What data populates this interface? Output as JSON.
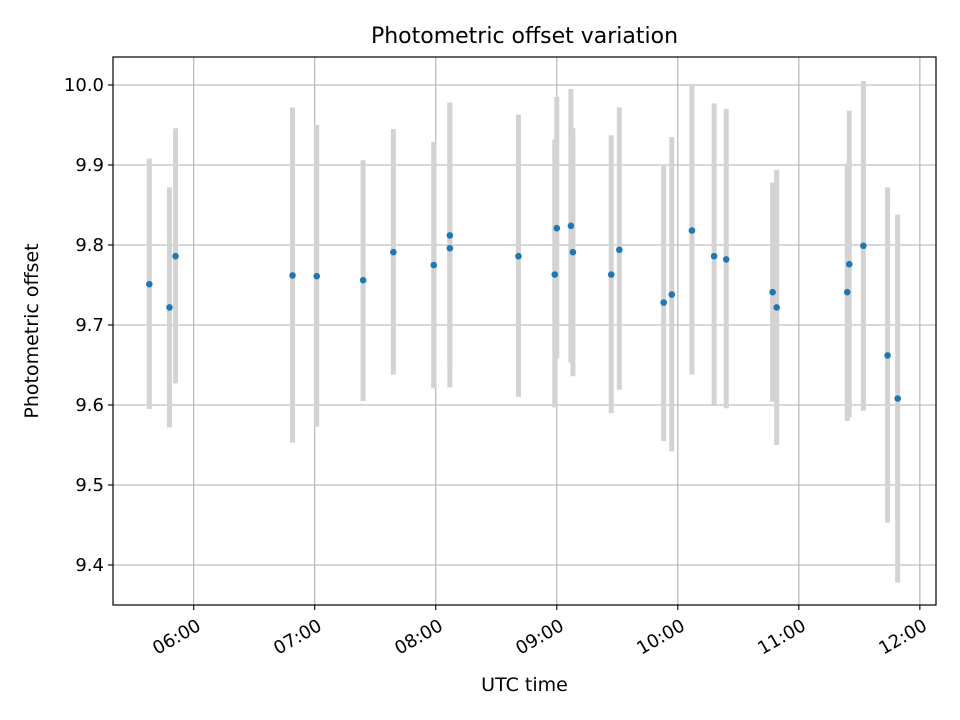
{
  "chart_data": {
    "type": "scatter",
    "title": "Photometric offset variation",
    "xlabel": "UTC time",
    "ylabel": "Photometric offset",
    "x_tick_labels": [
      "06:00",
      "07:00",
      "08:00",
      "09:00",
      "10:00",
      "11:00",
      "12:00"
    ],
    "y_tick_labels": [
      "9.4",
      "9.5",
      "9.6",
      "9.7",
      "9.8",
      "9.9",
      "10.0"
    ],
    "xlim": [
      "05:20",
      "12:08"
    ],
    "ylim": [
      9.35,
      10.035
    ],
    "grid": true,
    "errorbars": true,
    "series": [
      {
        "points": [
          {
            "x": "05:38",
            "y": 9.751,
            "ylow": 9.595,
            "yhigh": 9.908
          },
          {
            "x": "05:48",
            "y": 9.722,
            "ylow": 9.572,
            "yhigh": 9.872
          },
          {
            "x": "05:51",
            "y": 9.786,
            "ylow": 9.627,
            "yhigh": 9.946
          },
          {
            "x": "06:49",
            "y": 9.762,
            "ylow": 9.553,
            "yhigh": 9.972
          },
          {
            "x": "07:01",
            "y": 9.761,
            "ylow": 9.573,
            "yhigh": 9.95
          },
          {
            "x": "07:24",
            "y": 9.756,
            "ylow": 9.605,
            "yhigh": 9.906
          },
          {
            "x": "07:39",
            "y": 9.791,
            "ylow": 9.638,
            "yhigh": 9.945
          },
          {
            "x": "07:59",
            "y": 9.775,
            "ylow": 9.621,
            "yhigh": 9.929
          },
          {
            "x": "08:07",
            "y": 9.796,
            "ylow": 9.622,
            "yhigh": 9.978
          },
          {
            "x": "08:07",
            "y": 9.812,
            "ylow": 9.648,
            "yhigh": 9.978
          },
          {
            "x": "08:41",
            "y": 9.786,
            "ylow": 9.61,
            "yhigh": 9.963
          },
          {
            "x": "08:59",
            "y": 9.763,
            "ylow": 9.597,
            "yhigh": 9.932
          },
          {
            "x": "09:00",
            "y": 9.821,
            "ylow": 9.658,
            "yhigh": 9.985
          },
          {
            "x": "09:07",
            "y": 9.824,
            "ylow": 9.653,
            "yhigh": 9.995
          },
          {
            "x": "09:08",
            "y": 9.791,
            "ylow": 9.636,
            "yhigh": 9.946
          },
          {
            "x": "09:27",
            "y": 9.763,
            "ylow": 9.59,
            "yhigh": 9.937
          },
          {
            "x": "09:31",
            "y": 9.794,
            "ylow": 9.619,
            "yhigh": 9.972
          },
          {
            "x": "09:53",
            "y": 9.728,
            "ylow": 9.555,
            "yhigh": 9.901
          },
          {
            "x": "09:57",
            "y": 9.738,
            "ylow": 9.542,
            "yhigh": 9.935
          },
          {
            "x": "10:07",
            "y": 9.818,
            "ylow": 9.638,
            "yhigh": 10.0
          },
          {
            "x": "10:18",
            "y": 9.786,
            "ylow": 9.601,
            "yhigh": 9.977
          },
          {
            "x": "10:24",
            "y": 9.782,
            "ylow": 9.596,
            "yhigh": 9.97
          },
          {
            "x": "10:47",
            "y": 9.741,
            "ylow": 9.604,
            "yhigh": 9.878
          },
          {
            "x": "10:49",
            "y": 9.722,
            "ylow": 9.55,
            "yhigh": 9.894
          },
          {
            "x": "11:24",
            "y": 9.741,
            "ylow": 9.58,
            "yhigh": 9.902
          },
          {
            "x": "11:25",
            "y": 9.776,
            "ylow": 9.584,
            "yhigh": 9.968
          },
          {
            "x": "11:32",
            "y": 9.799,
            "ylow": 9.593,
            "yhigh": 10.005
          },
          {
            "x": "11:44",
            "y": 9.662,
            "ylow": 9.453,
            "yhigh": 9.872
          },
          {
            "x": "11:49",
            "y": 9.608,
            "ylow": 9.378,
            "yhigh": 9.838
          }
        ]
      }
    ],
    "colors": {
      "marker": "#1f77b4",
      "errorbar": "#d3d3d3",
      "grid": "#b0b0b0",
      "axes": "#000000"
    }
  }
}
